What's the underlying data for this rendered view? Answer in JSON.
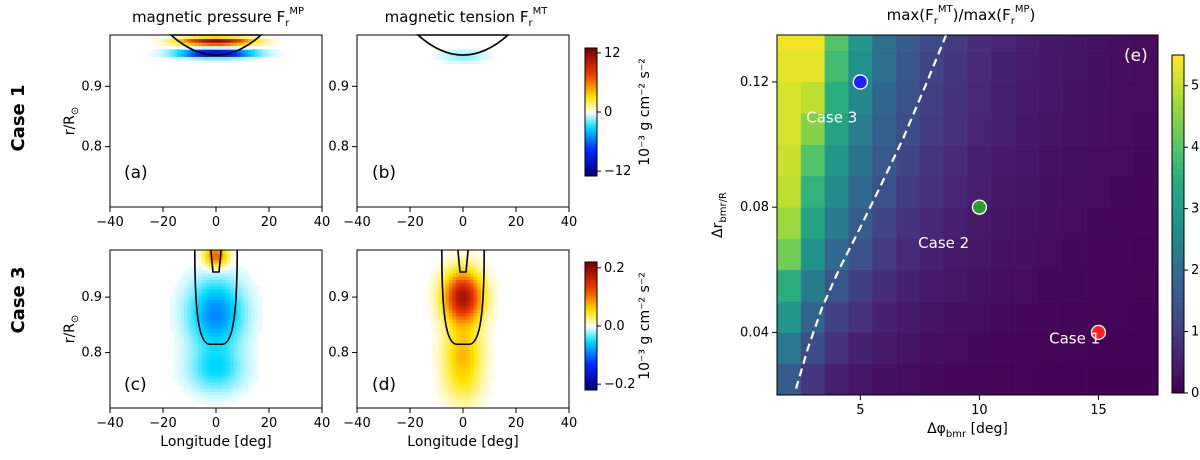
{
  "figure": {
    "row_labels": [
      "Case 1",
      "Case 3"
    ],
    "column_titles": {
      "pressure": {
        "base": "magnetic pressure F",
        "sub": "r",
        "sup": "MP"
      },
      "tension": {
        "base": "magnetic tension F",
        "sub": "r",
        "sup": "MT"
      },
      "ratio": "max(F_r^MT)/max(F_r^MP)"
    }
  },
  "chart_data": [
    {
      "type": "heatmap",
      "panel": "(a)",
      "title": "magnetic pressure F_r^MP",
      "row": "Case 1",
      "xlabel": "",
      "ylabel": "r/R_⊙",
      "xlim": [
        -40,
        40
      ],
      "ylim": [
        0.7,
        0.985
      ],
      "xticks": [
        "−40",
        "−20",
        "0",
        "20",
        "40"
      ],
      "xtick_values": [
        -40,
        -20,
        0,
        20,
        40
      ],
      "yticks": [
        "0.8",
        "0.9"
      ],
      "ytick_values": [
        0.8,
        0.9
      ],
      "contour": {
        "center_lon": 0,
        "half_width_deg": 17,
        "r_bottom": 0.95,
        "r_top": 0.985
      },
      "field": "pressure_case1"
    },
    {
      "type": "heatmap",
      "panel": "(b)",
      "title": "magnetic tension F_r^MT",
      "row": "Case 1",
      "xlabel": "",
      "ylabel": "",
      "xlim": [
        -40,
        40
      ],
      "ylim": [
        0.7,
        0.985
      ],
      "xticks": [
        "−40",
        "−20",
        "0",
        "20",
        "40"
      ],
      "xtick_values": [
        -40,
        -20,
        0,
        20,
        40
      ],
      "yticks": [
        "0.8",
        "0.9"
      ],
      "ytick_values": [
        0.8,
        0.9
      ],
      "contour": {
        "center_lon": 0,
        "half_width_deg": 17,
        "r_bottom": 0.95,
        "r_top": 0.985
      },
      "field": "tension_case1",
      "colorbar": {
        "ticks": [
          "12",
          "0",
          "−12"
        ],
        "tick_values": [
          12,
          0,
          -12
        ],
        "range": [
          -13,
          13
        ],
        "label": "10⁻³ g cm⁻² s⁻²"
      }
    },
    {
      "type": "heatmap",
      "panel": "(c)",
      "title": "",
      "row": "Case 3",
      "xlabel": "Longitude [deg]",
      "ylabel": "r/R_⊙",
      "xlim": [
        -40,
        40
      ],
      "ylim": [
        0.7,
        0.985
      ],
      "xticks": [
        "−40",
        "−20",
        "0",
        "20",
        "40"
      ],
      "xtick_values": [
        -40,
        -20,
        0,
        20,
        40
      ],
      "yticks": [
        "0.8",
        "0.9"
      ],
      "ytick_values": [
        0.8,
        0.9
      ],
      "contour": {
        "center_lon": 0,
        "half_width_deg": 8,
        "r_bottom": 0.815,
        "r_top": 0.985
      },
      "field": "pressure_case3"
    },
    {
      "type": "heatmap",
      "panel": "(d)",
      "title": "",
      "row": "Case 3",
      "xlabel": "Longitude [deg]",
      "ylabel": "",
      "xlim": [
        -40,
        40
      ],
      "ylim": [
        0.7,
        0.985
      ],
      "xticks": [
        "−40",
        "−20",
        "0",
        "20",
        "40"
      ],
      "xtick_values": [
        -40,
        -20,
        0,
        20,
        40
      ],
      "yticks": [
        "0.8",
        "0.9"
      ],
      "ytick_values": [
        0.8,
        0.9
      ],
      "contour": {
        "center_lon": 0,
        "half_width_deg": 8,
        "r_bottom": 0.815,
        "r_top": 0.985
      },
      "field": "tension_case3",
      "colorbar": {
        "ticks": [
          "0.2",
          "0.0",
          "−0.2"
        ],
        "tick_values": [
          0.2,
          0.0,
          -0.2
        ],
        "range": [
          -0.22,
          0.22
        ],
        "label": "10⁻³ g cm⁻² s⁻²"
      }
    },
    {
      "type": "heatmap",
      "panel": "(e)",
      "title": "max(F_r^MT)/max(F_r^MP)",
      "xlabel": "Δφ_bmr [deg]",
      "ylabel": "Δr_bmr/R_⊙",
      "xlim": [
        1.5,
        17.5
      ],
      "ylim": [
        0.02,
        0.135
      ],
      "x_centers": [
        2,
        3,
        4,
        5,
        6,
        7,
        8,
        9,
        10,
        11,
        12,
        13,
        14,
        15,
        16,
        17
      ],
      "y_centers": [
        0.025,
        0.035,
        0.045,
        0.055,
        0.065,
        0.075,
        0.085,
        0.095,
        0.105,
        0.115,
        0.125,
        0.135
      ],
      "values": [
        [
          1.6,
          0.9,
          0.5,
          0.35,
          0.25,
          0.2,
          0.15,
          0.1,
          0.08,
          0.06,
          0.05,
          0.04,
          0.03,
          0.02,
          0.02,
          0.01
        ],
        [
          2.2,
          1.3,
          0.8,
          0.55,
          0.4,
          0.3,
          0.22,
          0.17,
          0.13,
          0.1,
          0.08,
          0.06,
          0.05,
          0.04,
          0.03,
          0.03
        ],
        [
          2.9,
          1.8,
          1.1,
          0.8,
          0.55,
          0.42,
          0.32,
          0.25,
          0.2,
          0.15,
          0.12,
          0.1,
          0.08,
          0.06,
          0.05,
          0.04
        ],
        [
          3.5,
          2.3,
          1.5,
          1.05,
          0.75,
          0.55,
          0.42,
          0.33,
          0.26,
          0.2,
          0.16,
          0.13,
          0.11,
          0.09,
          0.07,
          0.06
        ],
        [
          4.3,
          2.8,
          1.9,
          1.35,
          0.95,
          0.7,
          0.55,
          0.42,
          0.33,
          0.27,
          0.22,
          0.17,
          0.14,
          0.12,
          0.1,
          0.08
        ],
        [
          4.7,
          3.2,
          2.3,
          1.6,
          1.15,
          0.85,
          0.65,
          0.5,
          0.4,
          0.32,
          0.26,
          0.21,
          0.17,
          0.14,
          0.12,
          0.1
        ],
        [
          5.0,
          3.6,
          2.6,
          1.9,
          1.35,
          1.0,
          0.78,
          0.6,
          0.48,
          0.38,
          0.31,
          0.25,
          0.2,
          0.17,
          0.14,
          0.12
        ],
        [
          5.1,
          4.0,
          2.9,
          2.1,
          1.55,
          1.15,
          0.88,
          0.68,
          0.54,
          0.43,
          0.35,
          0.29,
          0.23,
          0.19,
          0.16,
          0.13
        ],
        [
          5.2,
          4.5,
          3.2,
          2.35,
          1.7,
          1.3,
          0.98,
          0.76,
          0.6,
          0.48,
          0.39,
          0.32,
          0.26,
          0.21,
          0.18,
          0.15
        ],
        [
          5.2,
          5.0,
          3.5,
          2.55,
          1.85,
          1.4,
          1.07,
          0.83,
          0.66,
          0.53,
          0.42,
          0.35,
          0.28,
          0.23,
          0.19,
          0.16
        ],
        [
          5.3,
          5.3,
          3.8,
          2.75,
          2.0,
          1.5,
          1.15,
          0.9,
          0.7,
          0.57,
          0.46,
          0.37,
          0.3,
          0.25,
          0.21,
          0.17
        ],
        [
          5.4,
          5.4,
          4.0,
          2.9,
          2.1,
          1.6,
          1.22,
          0.95,
          0.75,
          0.6,
          0.48,
          0.39,
          0.32,
          0.26,
          0.22,
          0.18
        ]
      ],
      "xticks": [
        "5",
        "10",
        "15"
      ],
      "xtick_values": [
        5,
        10,
        15
      ],
      "yticks": [
        "0.04",
        "0.08",
        "0.12"
      ],
      "ytick_values": [
        0.04,
        0.08,
        0.12
      ],
      "colorbar": {
        "ticks": [
          "0",
          "1",
          "2",
          "3",
          "4",
          "5"
        ],
        "tick_values": [
          0,
          1,
          2,
          3,
          4,
          5
        ],
        "range": [
          0,
          5.5
        ],
        "colormap": "viridis"
      },
      "boundary_curve": {
        "style": "dashed",
        "color": "#ffffff",
        "x": [
          2.3,
          2.8,
          3.4,
          4.1,
          4.9,
          5.8,
          6.8,
          7.8,
          8.6
        ],
        "y": [
          0.022,
          0.035,
          0.048,
          0.06,
          0.072,
          0.086,
          0.102,
          0.12,
          0.135
        ]
      },
      "markers": [
        {
          "label": "Case 3",
          "x": 5,
          "y": 0.12,
          "color": "#1f1fff",
          "label_dx": -1.2,
          "label_dy": -0.013
        },
        {
          "label": "Case 2",
          "x": 10,
          "y": 0.08,
          "color": "#2ca02c",
          "label_dx": -1.5,
          "label_dy": -0.013
        },
        {
          "label": "Case 1",
          "x": 15,
          "y": 0.04,
          "color": "#ff2020",
          "label_dx": -1.0,
          "label_dy": -0.0035
        }
      ]
    }
  ]
}
